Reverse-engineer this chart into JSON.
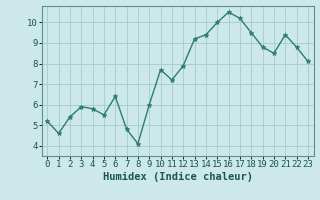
{
  "x": [
    0,
    1,
    2,
    3,
    4,
    5,
    6,
    7,
    8,
    9,
    10,
    11,
    12,
    13,
    14,
    15,
    16,
    17,
    18,
    19,
    20,
    21,
    22,
    23
  ],
  "y": [
    5.2,
    4.6,
    5.4,
    5.9,
    5.8,
    5.5,
    6.4,
    4.8,
    4.1,
    6.0,
    7.7,
    7.2,
    7.9,
    9.2,
    9.4,
    10.0,
    10.5,
    10.2,
    9.5,
    8.8,
    8.5,
    9.4,
    8.8,
    8.1
  ],
  "line_color": "#2e7d6e",
  "marker": "*",
  "marker_size": 3.5,
  "bg_color": "#cce8e8",
  "grid_color": "#aacece",
  "xlabel": "Humidex (Indice chaleur)",
  "xlabel_fontsize": 7.5,
  "tick_fontsize": 6.5,
  "xlim": [
    -0.5,
    23.5
  ],
  "ylim": [
    3.5,
    10.8
  ],
  "yticks": [
    4,
    5,
    6,
    7,
    8,
    9,
    10
  ],
  "xticks": [
    0,
    1,
    2,
    3,
    4,
    5,
    6,
    7,
    8,
    9,
    10,
    11,
    12,
    13,
    14,
    15,
    16,
    17,
    18,
    19,
    20,
    21,
    22,
    23
  ]
}
